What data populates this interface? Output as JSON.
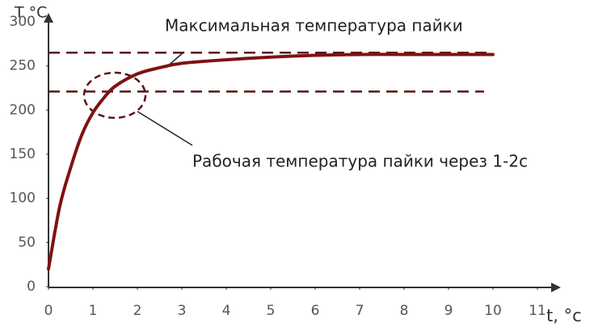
{
  "chart_data": {
    "type": "line",
    "y_label": "T °C",
    "x_label": "t, °c",
    "annotations": [
      {
        "text": "Максимальная температура пайки"
      },
      {
        "text": "Рабочая температура пайки через 1-2с"
      }
    ],
    "x": [
      0,
      0.25,
      0.5,
      0.75,
      1,
      1.25,
      1.5,
      2,
      2.5,
      3,
      4,
      5,
      6,
      7,
      8,
      9,
      10
    ],
    "series": [
      {
        "color": "#7f1212",
        "values": [
          20,
          90,
          135,
          172,
          197,
          214,
          227,
          241,
          248,
          253,
          257,
          260,
          262,
          263,
          263,
          263,
          263
        ]
      }
    ],
    "reference_lines": [
      {
        "value": 265,
        "from": 0,
        "to": 10
      },
      {
        "value": 221,
        "from": 0,
        "to": 9.8
      }
    ],
    "reference_color": "#5a1414",
    "xlim": [
      0,
      11
    ],
    "xticks": [
      0,
      1,
      2,
      3,
      4,
      5,
      6,
      7,
      8,
      9,
      10,
      11
    ],
    "ylim": [
      0,
      300
    ],
    "yticks": [
      0,
      50,
      100,
      150,
      200,
      250,
      300
    ],
    "grid": false
  }
}
